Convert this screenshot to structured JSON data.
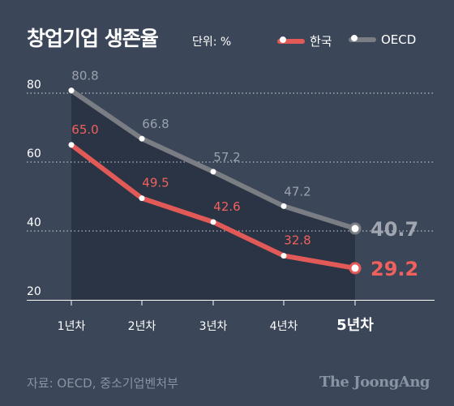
{
  "title": "창업기업 생존율",
  "unit": "단위: %",
  "legend": {
    "korea": "한국",
    "oecd": "OECD"
  },
  "source": "자료: OECD, 중소기업벤처부",
  "brand": "The JoongAng",
  "colors": {
    "background": "#3b4658",
    "korea": "#e25a57",
    "oecd": "#7a7d83",
    "area": "#2b3445"
  },
  "chart_data": {
    "type": "line",
    "categories": [
      "1년차",
      "2년차",
      "3년차",
      "4년차",
      "5년차"
    ],
    "series": [
      {
        "name": "한국",
        "values": [
          65.0,
          49.5,
          42.6,
          32.8,
          29.2
        ]
      },
      {
        "name": "OECD",
        "values": [
          80.8,
          66.8,
          57.2,
          47.2,
          40.7
        ]
      }
    ],
    "yticks": [
      20,
      40,
      60,
      80
    ],
    "ylim": [
      20,
      80
    ],
    "grid": true,
    "legend_position": "top-right"
  }
}
